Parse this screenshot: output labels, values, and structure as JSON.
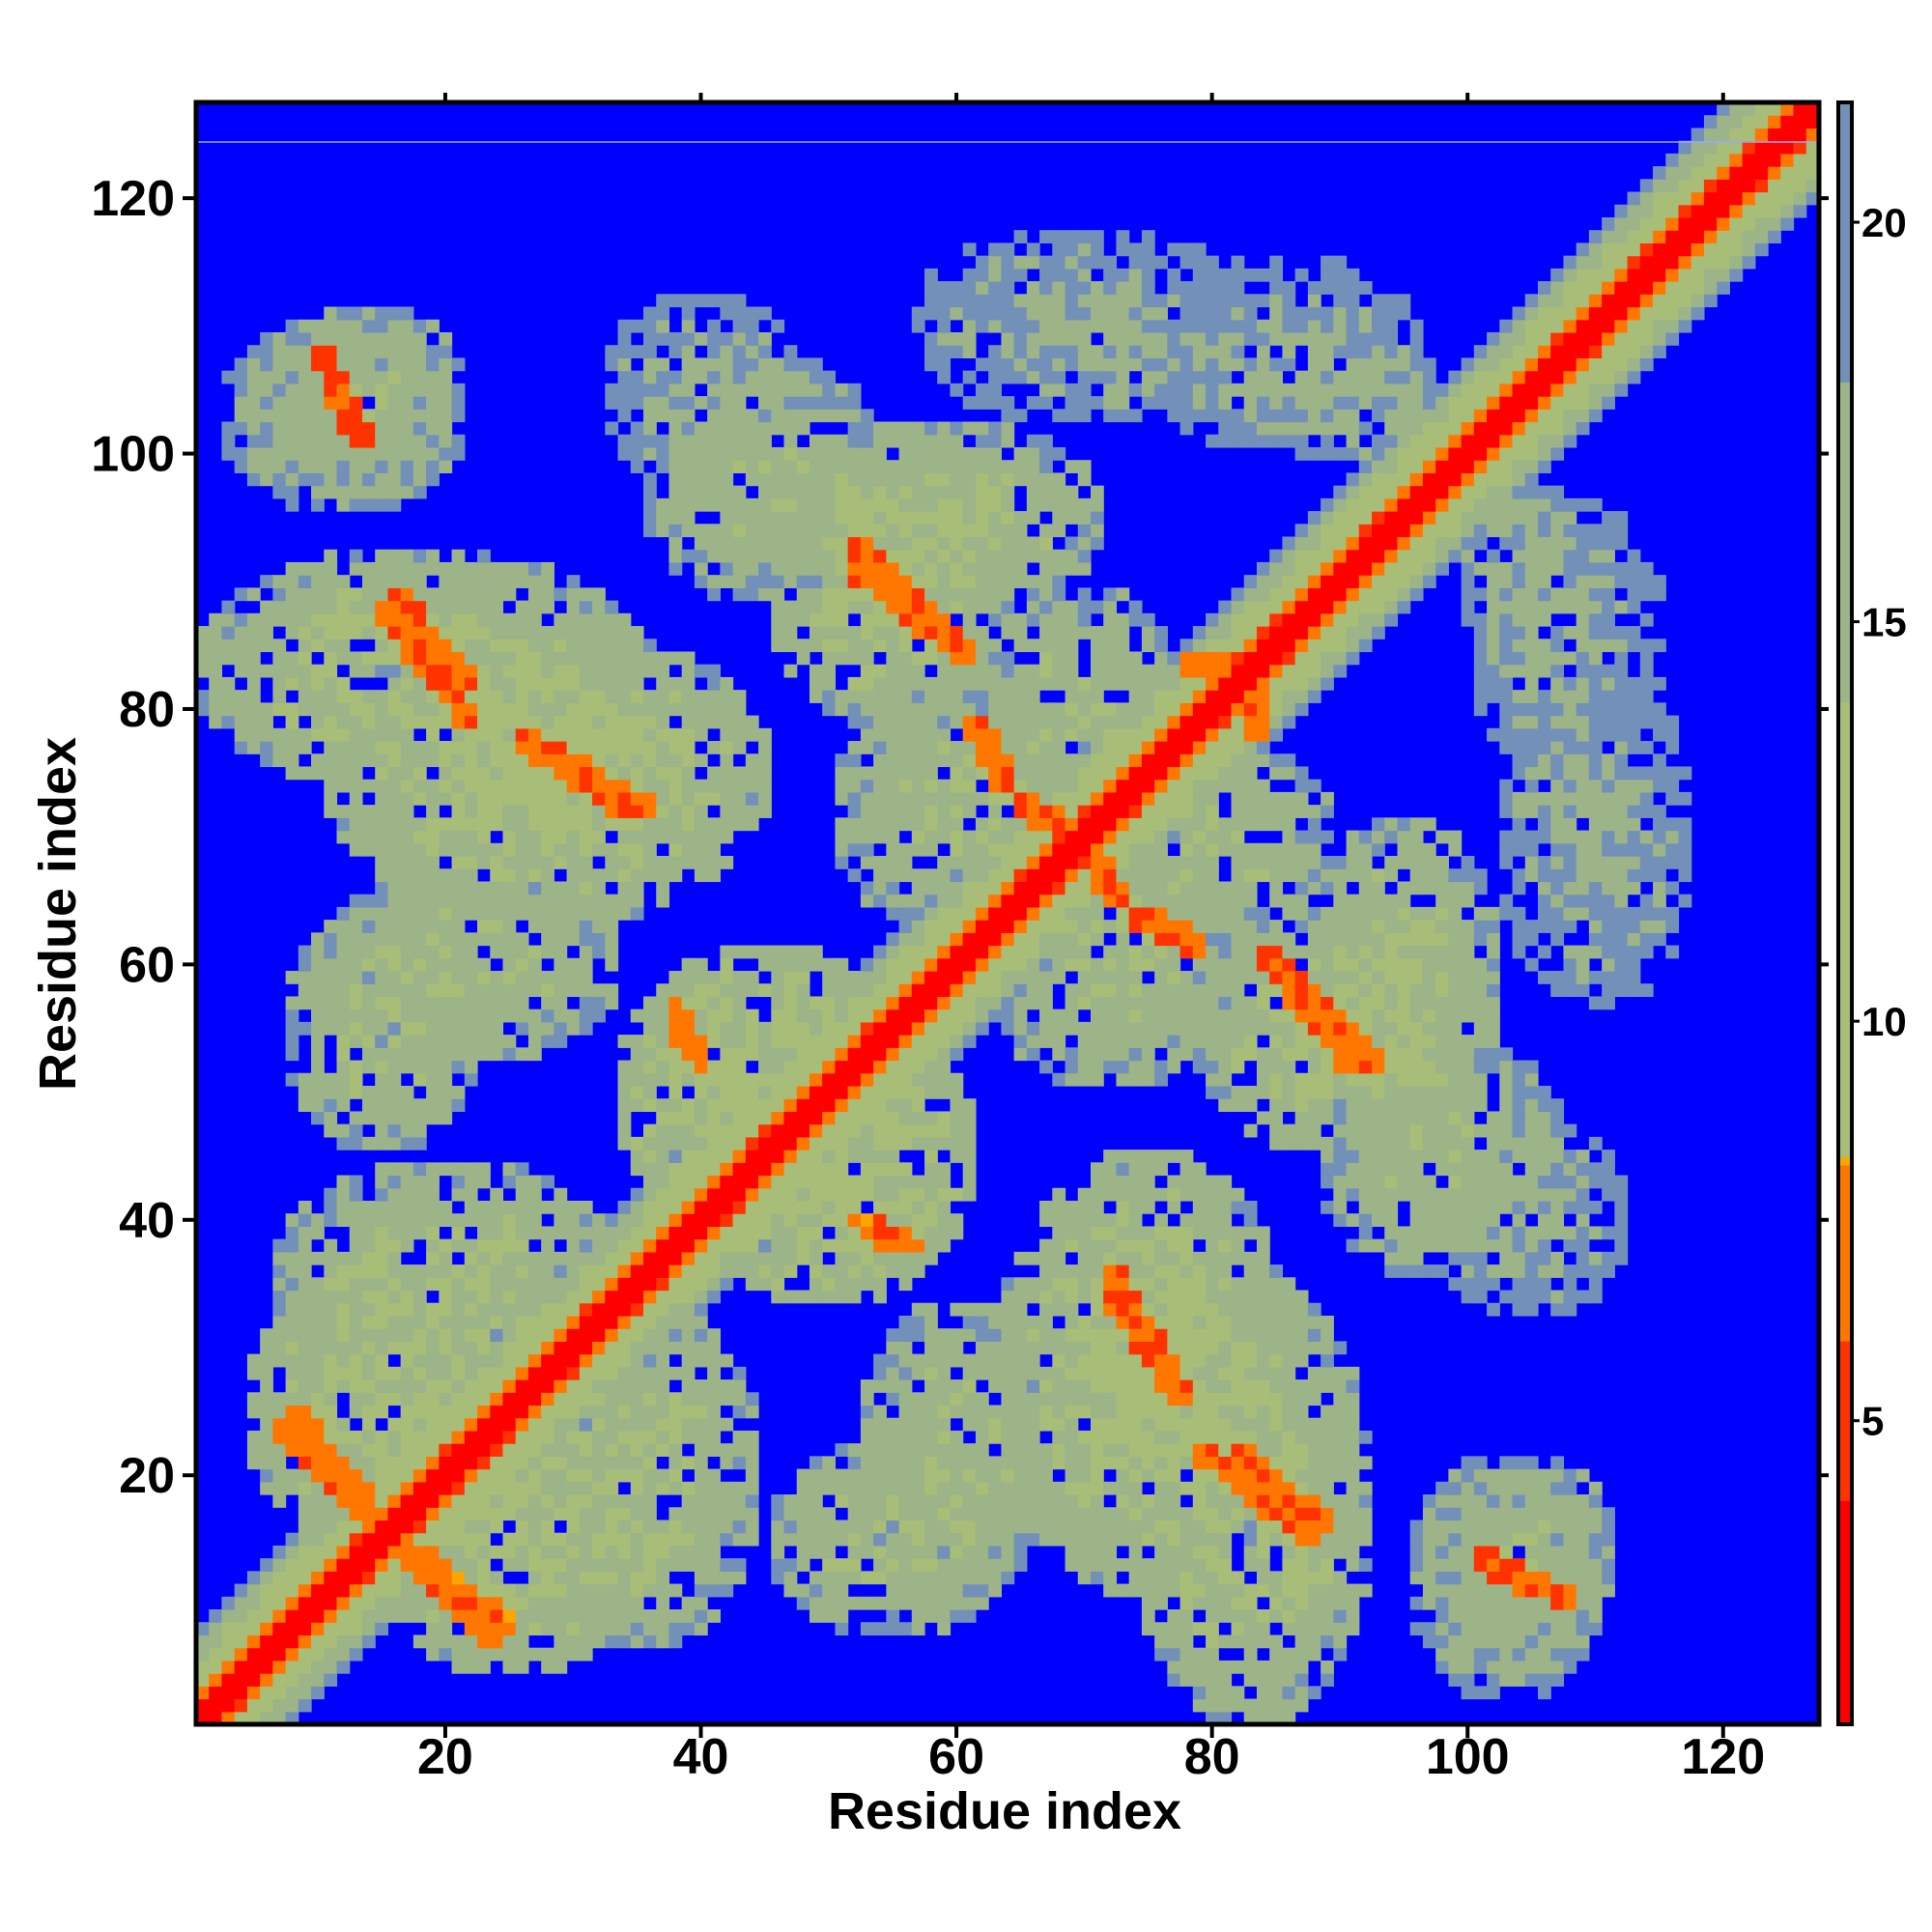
{
  "chart_data": {
    "type": "heatmap",
    "title": "",
    "xlabel": "Residue index",
    "ylabel": "Residue index",
    "xlim": [
      1,
      127
    ],
    "ylim": [
      1,
      127
    ],
    "x_ticks": [
      20,
      40,
      60,
      80,
      100,
      120
    ],
    "y_ticks": [
      20,
      40,
      60,
      80,
      100,
      120
    ],
    "x_tick_labels": [
      "20",
      "40",
      "60",
      "80",
      "100",
      "120"
    ],
    "y_tick_labels": [
      "20",
      "40",
      "60",
      "80",
      "100",
      "120"
    ],
    "colorbar": {
      "range": [
        1.2,
        21.5
      ],
      "ticks": [
        5,
        10,
        15,
        20
      ],
      "tick_labels": [
        "5",
        "10",
        "15",
        "20"
      ],
      "colors": [
        {
          "value": 1.2,
          "color": "#ff0000"
        },
        {
          "value": 4.0,
          "color": "#ff3300"
        },
        {
          "value": 6.0,
          "color": "#ff7700"
        },
        {
          "value": 8.2,
          "color": "#ffa500"
        },
        {
          "value": 8.3,
          "color": "#a8bd78"
        },
        {
          "value": 14.0,
          "color": "#9cb487"
        },
        {
          "value": 18.0,
          "color": "#7390b8"
        },
        {
          "value": 21.5,
          "color": "#3b5ad8"
        }
      ],
      "background_color": "#0000ff"
    },
    "value_description": "pairwise residue distance map, symmetric about the diagonal",
    "diagonal": {
      "value": 2.0,
      "halfwidth": 1
    },
    "near_diagonal_band": [
      {
        "offset": 2,
        "value": 6.5
      },
      {
        "offset": 3,
        "value": 9.5
      },
      {
        "offset": 4,
        "value": 12.0
      },
      {
        "offset": 5,
        "value": 14.0
      },
      {
        "offset": 6,
        "value": 16.5
      },
      {
        "offset": 7,
        "value": 19.0
      }
    ],
    "contact_segments": [
      {
        "from": [
          8,
          25
        ],
        "to": [
          14,
          18
        ],
        "value": 7.0
      },
      {
        "from": [
          16,
          15
        ],
        "to": [
          24,
          7
        ],
        "value": 7.0
      },
      {
        "from": [
          16,
          89
        ],
        "to": [
          22,
          82
        ],
        "value": 6.5
      },
      {
        "from": [
          27,
          77
        ],
        "to": [
          34,
          72
        ],
        "value": 6.5
      },
      {
        "from": [
          52,
          93
        ],
        "to": [
          60,
          85
        ],
        "value": 6.5
      },
      {
        "from": [
          61,
          79
        ],
        "to": [
          64,
          74
        ],
        "value": 6.5
      },
      {
        "from": [
          67,
          72
        ],
        "to": [
          73,
          65
        ],
        "value": 6.5
      },
      {
        "from": [
          74,
          64
        ],
        "to": [
          79,
          62
        ],
        "value": 7.0
      },
      {
        "from": [
          84,
          61
        ],
        "to": [
          91,
          52
        ],
        "value": 6.5
      },
      {
        "from": [
          72,
          36
        ],
        "to": [
          78,
          26
        ],
        "value": 6.5
      },
      {
        "from": [
          79,
          22
        ],
        "to": [
          88,
          15
        ],
        "value": 6.5
      },
      {
        "from": [
          38,
          57
        ],
        "to": [
          40,
          52
        ],
        "value": 7.0
      },
      {
        "from": [
          53,
          40
        ],
        "to": [
          55,
          38
        ],
        "value": 7.0
      },
      {
        "from": [
          11,
          106
        ],
        "to": [
          13,
          102
        ],
        "value": 5.5
      },
      {
        "from": [
          101,
          14
        ],
        "to": [
          108,
          10
        ],
        "value": 5.5
      },
      {
        "from": [
          78,
          84
        ],
        "to": [
          84,
          80
        ],
        "value": 7.0
      }
    ],
    "contact_regions": [
      {
        "center": [
          18,
          83
        ],
        "radius": [
          18,
          10
        ],
        "value": 13.5
      },
      {
        "center": [
          75,
          28
        ],
        "radius": [
          12,
          18
        ],
        "value": 13.0
      },
      {
        "center": [
          22,
          60
        ],
        "radius": [
          12,
          8
        ],
        "value": 14.5
      },
      {
        "center": [
          30,
          75
        ],
        "radius": [
          10,
          8
        ],
        "value": 13.0
      },
      {
        "center": [
          58,
          95
        ],
        "radius": [
          14,
          8
        ],
        "value": 14.0
      },
      {
        "center": [
          60,
          72
        ],
        "radius": [
          10,
          10
        ],
        "value": 14.5
      },
      {
        "center": [
          80,
          70
        ],
        "radius": [
          10,
          8
        ],
        "value": 14.5
      },
      {
        "center": [
          90,
          55
        ],
        "radius": [
          12,
          10
        ],
        "value": 13.5
      },
      {
        "center": [
          98,
          45
        ],
        "radius": [
          10,
          10
        ],
        "value": 15.0
      },
      {
        "center": [
          55,
          15
        ],
        "radius": [
          10,
          8
        ],
        "value": 14.5
      },
      {
        "center": [
          45,
          50
        ],
        "radius": [
          12,
          12
        ],
        "value": 12.5
      },
      {
        "center": [
          35,
          20
        ],
        "radius": [
          10,
          14
        ],
        "value": 14.0
      },
      {
        "center": [
          18,
          25
        ],
        "radius": [
          14,
          12
        ],
        "value": 13.0
      },
      {
        "center": [
          12,
          103
        ],
        "radius": [
          10,
          8
        ],
        "value": 15.5
      },
      {
        "center": [
          40,
          105
        ],
        "radius": [
          8,
          8
        ],
        "value": 17.0
      },
      {
        "center": [
          85,
          108
        ],
        "radius": [
          12,
          8
        ],
        "value": 17.5
      },
      {
        "center": [
          104,
          14
        ],
        "radius": [
          8,
          8
        ],
        "value": 15.0
      },
      {
        "center": [
          110,
          70
        ],
        "radius": [
          8,
          14
        ],
        "value": 17.0
      },
      {
        "center": [
          105,
          90
        ],
        "radius": [
          6,
          8
        ],
        "value": 16.0
      }
    ]
  }
}
